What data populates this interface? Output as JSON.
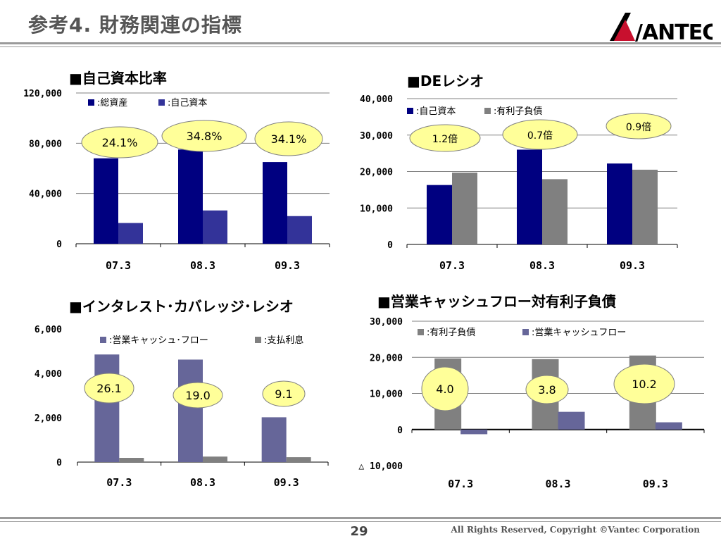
{
  "header": {
    "title": "参考4. 財務関連の指標",
    "logo_text": "VANTEC",
    "accent_color": "#c8102e"
  },
  "footer": {
    "page_number": "29",
    "copyright": "All Rights Reserved, Copyright ©Vantec Corporation"
  },
  "chart_data": [
    {
      "type": "bar",
      "title": "■自己資本比率",
      "categories": [
        "07.3",
        "08.3",
        "09.3"
      ],
      "series": [
        {
          "name": ":総資産",
          "color": "#000080",
          "values": [
            68000,
            75000,
            65000
          ]
        },
        {
          "name": ":自己資本",
          "color": "#333399",
          "values": [
            16500,
            26500,
            22000
          ]
        }
      ],
      "ylim": [
        0,
        120000
      ],
      "yticks": [
        0,
        40000,
        80000,
        120000
      ],
      "ytick_labels": [
        "0",
        "40,000",
        "80,000",
        "120,000"
      ],
      "grid": true,
      "legend": "top",
      "annotations": [
        "24.1%",
        "34.8%",
        "34.1%"
      ]
    },
    {
      "type": "bar",
      "title": "■DEレシオ",
      "categories": [
        "07.3",
        "08.3",
        "09.3"
      ],
      "series": [
        {
          "name": ":自己資本",
          "color": "#000080",
          "values": [
            16300,
            26000,
            22200
          ]
        },
        {
          "name": ":有利子負債",
          "color": "#808080",
          "values": [
            19700,
            17900,
            20500
          ]
        }
      ],
      "ylim": [
        0,
        40000
      ],
      "yticks": [
        0,
        10000,
        20000,
        30000,
        40000
      ],
      "ytick_labels": [
        "0",
        "10,000",
        "20,000",
        "30,000",
        "40,000"
      ],
      "grid": true,
      "legend": "top",
      "annotations": [
        "1.2倍",
        "0.7倍",
        "0.9倍"
      ]
    },
    {
      "type": "bar",
      "title": "■インタレスト･カバレッジ･レシオ",
      "categories": [
        "07.3",
        "08.3",
        "09.3"
      ],
      "series": [
        {
          "name": ":営業キャッシュ･フロー",
          "color": "#666699",
          "values": [
            4850,
            4620,
            2020
          ]
        },
        {
          "name": ":支払利息",
          "color": "#808080",
          "values": [
            190,
            250,
            220
          ]
        }
      ],
      "ylim": [
        0,
        6000
      ],
      "yticks": [
        0,
        2000,
        4000,
        6000
      ],
      "ytick_labels": [
        "0",
        "2,000",
        "4,000",
        "6,000"
      ],
      "grid": false,
      "legend": "top",
      "annotations": [
        "26.1",
        "19.0",
        "9.1"
      ]
    },
    {
      "type": "bar",
      "title": "■営業キャッシュフロー対有利子負債",
      "categories": [
        "07.3",
        "08.3",
        "09.3"
      ],
      "series": [
        {
          "name": ":有利子負債",
          "color": "#808080",
          "values": [
            19700,
            19500,
            20500
          ]
        },
        {
          "name": ":営業キャッシュフロー",
          "color": "#666699",
          "values": [
            -1300,
            4900,
            2000
          ]
        }
      ],
      "ylim": [
        -10000,
        30000
      ],
      "yticks": [
        -10000,
        0,
        10000,
        20000,
        30000
      ],
      "ytick_labels": [
        "△ 10,000",
        "0",
        "10,000",
        "20,000",
        "30,000"
      ],
      "grid": true,
      "legend": "top",
      "annotations": [
        "4.0",
        "3.8",
        "10.2"
      ]
    }
  ]
}
